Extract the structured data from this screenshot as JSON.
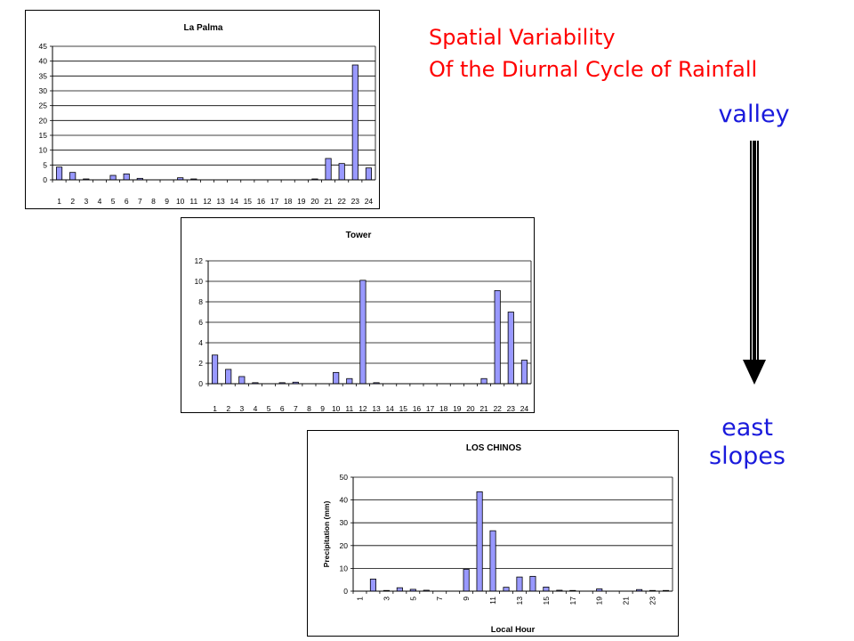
{
  "heading": {
    "line1": "Spatial Variability",
    "line2": "Of the Diurnal Cycle of Rainfall"
  },
  "side_labels": {
    "top": "valley",
    "bottom_line1": "east",
    "bottom_line2": "slopes"
  },
  "colors": {
    "heading": "#ff0000",
    "side_labels": "#1a1adc",
    "bar_fill": "#9999ff",
    "arrow": "#000000"
  },
  "chart_data": [
    {
      "type": "bar",
      "title": "La Palma",
      "xlabel": "",
      "ylabel": "",
      "ylim": [
        0,
        45
      ],
      "yticks": [
        0,
        5,
        10,
        15,
        20,
        25,
        30,
        35,
        40,
        45
      ],
      "grid": true,
      "categories": [
        "1",
        "2",
        "3",
        "4",
        "5",
        "6",
        "7",
        "8",
        "9",
        "10",
        "11",
        "12",
        "13",
        "14",
        "15",
        "16",
        "17",
        "18",
        "19",
        "20",
        "21",
        "22",
        "23",
        "24"
      ],
      "values": [
        4.3,
        2.5,
        0.3,
        0,
        1.5,
        2,
        0.5,
        0,
        0,
        0.7,
        0.3,
        0,
        0,
        0,
        0,
        0,
        0,
        0,
        0,
        0.3,
        7.2,
        5.5,
        38.7,
        4
      ],
      "tick_labels": [
        "1",
        "2",
        "3",
        "4",
        "5",
        "6",
        "7",
        "8",
        "9",
        "10",
        "11",
        "12",
        "13",
        "14",
        "15",
        "16",
        "17",
        "18",
        "19",
        "20",
        "21",
        "22",
        "23",
        "24"
      ],
      "rotate_ticks": false
    },
    {
      "type": "bar",
      "title": "Tower",
      "xlabel": "",
      "ylabel": "",
      "ylim": [
        0,
        12
      ],
      "yticks": [
        0,
        2,
        4,
        6,
        8,
        10,
        12
      ],
      "grid": true,
      "categories": [
        "1",
        "2",
        "3",
        "4",
        "5",
        "6",
        "7",
        "8",
        "9",
        "10",
        "11",
        "12",
        "13",
        "14",
        "15",
        "16",
        "17",
        "18",
        "19",
        "20",
        "21",
        "22",
        "23",
        "24"
      ],
      "values": [
        2.8,
        1.4,
        0.7,
        0.1,
        0,
        0.1,
        0.15,
        0,
        0,
        1.1,
        0.5,
        10.1,
        0.1,
        0,
        0,
        0,
        0,
        0,
        0,
        0,
        0.5,
        9.1,
        7.0,
        2.3
      ],
      "tick_labels": [
        "1",
        "2",
        "3",
        "4",
        "5",
        "6",
        "7",
        "8",
        "9",
        "10",
        "11",
        "12",
        "13",
        "14",
        "15",
        "16",
        "17",
        "18",
        "19",
        "20",
        "21",
        "22",
        "23",
        "24"
      ],
      "rotate_ticks": false
    },
    {
      "type": "bar",
      "title": "LOS CHINOS",
      "xlabel": "Local Hour",
      "ylabel": "Precipitation (mm)",
      "ylim": [
        0,
        50
      ],
      "yticks": [
        0,
        10,
        20,
        30,
        40,
        50
      ],
      "grid": true,
      "categories": [
        "1",
        "2",
        "3",
        "4",
        "5",
        "6",
        "7",
        "8",
        "9",
        "10",
        "11",
        "12",
        "13",
        "14",
        "15",
        "16",
        "17",
        "18",
        "19",
        "20",
        "21",
        "22",
        "23",
        "24"
      ],
      "values": [
        0,
        5.3,
        0.3,
        1.5,
        0.8,
        0.4,
        0,
        0,
        9.6,
        43.6,
        26.5,
        1.7,
        6.2,
        6.5,
        1.8,
        0.4,
        0.3,
        0,
        1.0,
        0,
        0,
        0.7,
        0.3,
        0.3
      ],
      "tick_labels": [
        "1",
        "",
        "3",
        "",
        "5",
        "",
        "7",
        "",
        "9",
        "",
        "11",
        "",
        "13",
        "",
        "15",
        "",
        "17",
        "",
        "19",
        "",
        "21",
        "",
        "23",
        ""
      ],
      "rotate_ticks": true
    }
  ]
}
